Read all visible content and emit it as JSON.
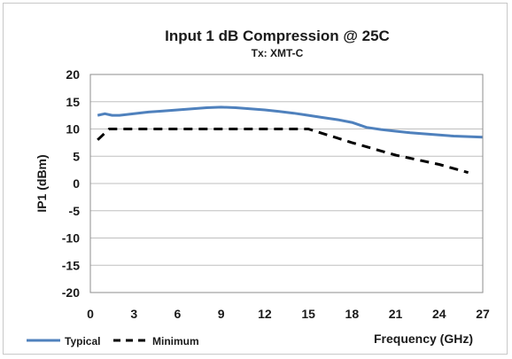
{
  "chart_data": {
    "type": "line",
    "title": "Input 1 dB Compression @ 25C",
    "subtitle": "Tx: XMT-C",
    "xlabel": "Frequency (GHz)",
    "ylabel": "IP1 (dBm)",
    "xlim": [
      0,
      27
    ],
    "ylim": [
      -20,
      20
    ],
    "x_ticks": [
      "0",
      "3",
      "6",
      "9",
      "12",
      "15",
      "18",
      "21",
      "24",
      "27"
    ],
    "y_ticks": [
      "20",
      "15",
      "10",
      "5",
      "0",
      "-5",
      "-10",
      "-15",
      "-20"
    ],
    "grid": "horizontal",
    "legend_position": "bottom-left",
    "series": [
      {
        "name": "Typical",
        "color": "#4f81bd",
        "style": "solid",
        "x": [
          0.5,
          1,
          1.5,
          2,
          3,
          4,
          5,
          6,
          7,
          8,
          9,
          10,
          11,
          12,
          13,
          14,
          15,
          16,
          17,
          18,
          19,
          20,
          21,
          22,
          23,
          24,
          25,
          26,
          27
        ],
        "y": [
          12.5,
          12.8,
          12.5,
          12.5,
          12.8,
          13.1,
          13.3,
          13.5,
          13.7,
          13.9,
          14.0,
          13.9,
          13.7,
          13.5,
          13.2,
          12.9,
          12.5,
          12.1,
          11.7,
          11.2,
          10.3,
          9.9,
          9.6,
          9.3,
          9.1,
          8.9,
          8.7,
          8.6,
          8.5
        ]
      },
      {
        "name": "Minimum",
        "color": "#000000",
        "style": "dashed",
        "x": [
          0.5,
          1.3,
          2,
          15,
          18,
          21,
          24,
          26
        ],
        "y": [
          8,
          10,
          10,
          10,
          7.5,
          5.2,
          3.5,
          2
        ]
      }
    ]
  }
}
